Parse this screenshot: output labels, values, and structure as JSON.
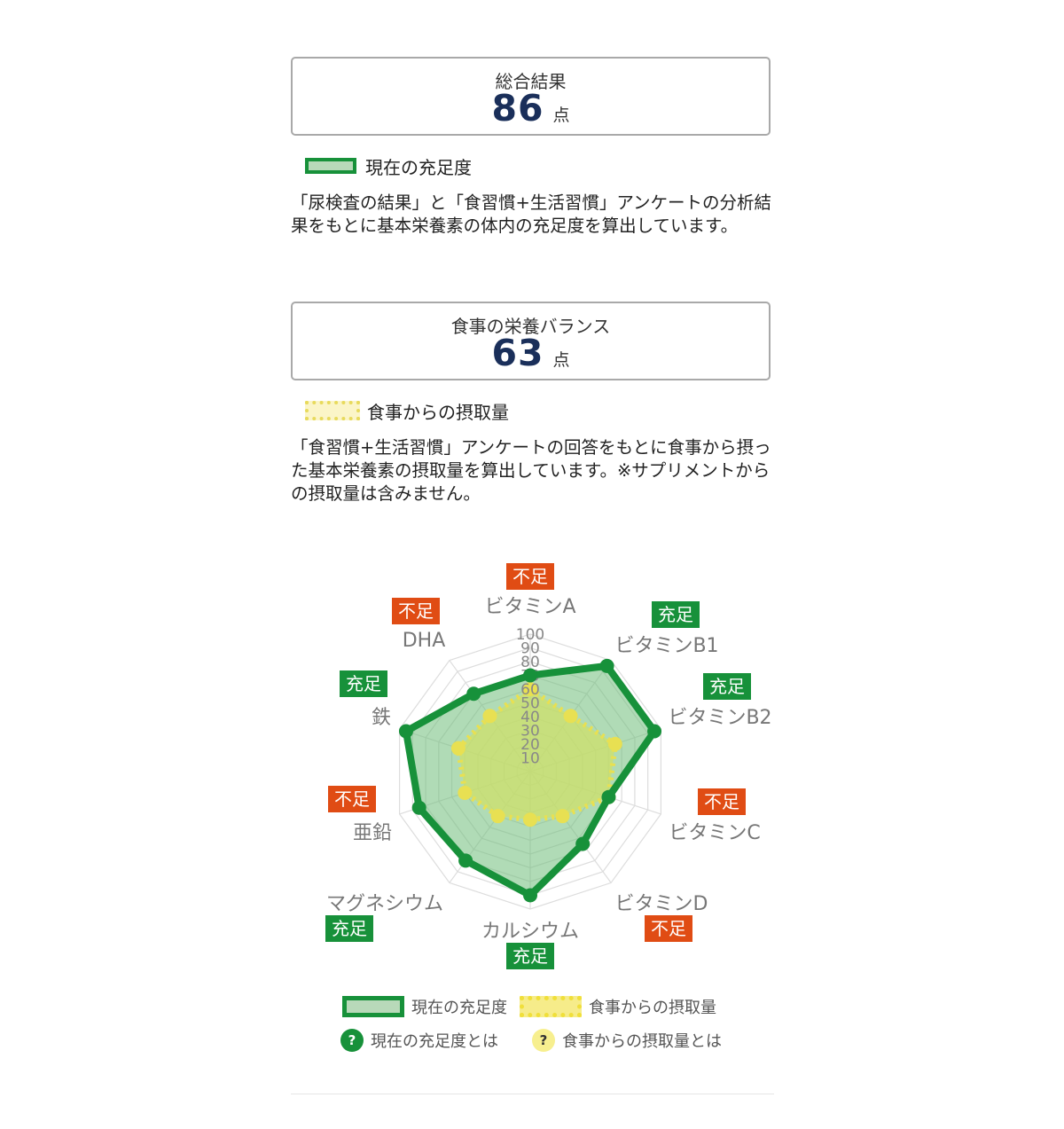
{
  "overall": {
    "title": "総合結果",
    "score": "86",
    "unit": "点"
  },
  "legend_current": "現在の充足度",
  "desc_current": "「尿検査の結果」と「食習慣+生活習慣」アンケートの分析結果をもとに基本栄養素の体内の充足度を算出しています。",
  "diet": {
    "title": "食事の栄養バランス",
    "score": "63",
    "unit": "点"
  },
  "legend_diet": "食事からの摂取量",
  "desc_diet": "「食習慣+生活習慣」アンケートの回答をもとに食事から摂った基本栄養素の摂取量を算出しています。※サプリメントからの摂取量は含みません。",
  "chart_data": {
    "type": "radar",
    "categories": [
      "ビタミンA",
      "ビタミンB1",
      "ビタミンB2",
      "ビタミンC",
      "ビタミンD",
      "カルシウム",
      "マグネシウム",
      "亜鉛",
      "鉄",
      "DHA"
    ],
    "status": [
      "不足",
      "充足",
      "充足",
      "不足",
      "不足",
      "充足",
      "充足",
      "不足",
      "充足",
      "不足"
    ],
    "scale_ticks": [
      "10",
      "20",
      "30",
      "40",
      "50",
      "60",
      "70",
      "80",
      "90",
      "100"
    ],
    "ylim": [
      0,
      100
    ],
    "series": [
      {
        "name": "現在の充足度",
        "values": [
          70,
          95,
          95,
          60,
          65,
          90,
          80,
          85,
          95,
          70
        ]
      },
      {
        "name": "食事からの摂取量",
        "values": [
          60,
          50,
          65,
          60,
          40,
          35,
          40,
          50,
          55,
          50
        ]
      }
    ],
    "colors": {
      "current_line": "#17913a",
      "current_fill": "#6fbd7a",
      "diet_line": "#e8e052",
      "diet_fill": "#cfe06a",
      "ok": "#17913a",
      "ng": "#e04c14",
      "grid": "#dddddd"
    }
  },
  "bottom_legend": {
    "current": "現在の充足度",
    "diet": "食事からの摂取量",
    "current_help": "現在の充足度とは",
    "diet_help": "食事からの摂取量とは",
    "help_icon": "?"
  }
}
